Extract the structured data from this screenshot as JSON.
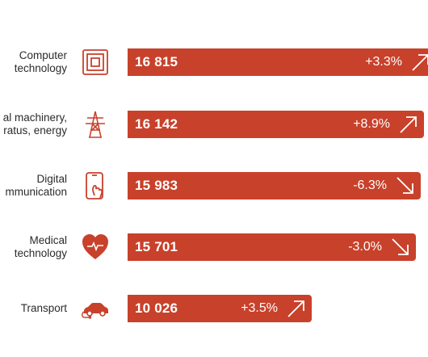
{
  "colors": {
    "bar": "#c8412b",
    "icon": "#c8412b",
    "text": "#2b2b2b",
    "bar_text": "#ffffff"
  },
  "rows": [
    {
      "label_lines": [
        "Computer",
        "technology"
      ],
      "value_text": "16 815",
      "change_text": "+3.3%",
      "trend": "up",
      "icon": "chip-icon"
    },
    {
      "label_lines": [
        "al machinery,",
        "ratus, energy"
      ],
      "value_text": "16 142",
      "change_text": "+8.9%",
      "trend": "up",
      "icon": "power-pylon-icon"
    },
    {
      "label_lines": [
        "Digital",
        "mmunication"
      ],
      "value_text": "15 983",
      "change_text": "-6.3%",
      "trend": "down",
      "icon": "smartphone-hand-icon"
    },
    {
      "label_lines": [
        "Medical",
        "technology"
      ],
      "value_text": "15 701",
      "change_text": "-3.0%",
      "trend": "down",
      "icon": "heart-pulse-icon"
    },
    {
      "label_lines": [
        "Transport"
      ],
      "value_text": "10 026",
      "change_text": "+3.5%",
      "trend": "up",
      "icon": "electric-car-icon"
    }
  ],
  "chart_data": {
    "type": "bar",
    "orientation": "horizontal",
    "categories": [
      "Computer technology",
      "al machinery, ratus, energy",
      "Digital mmunication",
      "Medical technology",
      "Transport"
    ],
    "values": [
      16815,
      16142,
      15983,
      15701,
      10026
    ],
    "change_percent": [
      3.3,
      8.9,
      -6.3,
      -3.0,
      3.5
    ],
    "grid": false,
    "legend": "none"
  }
}
